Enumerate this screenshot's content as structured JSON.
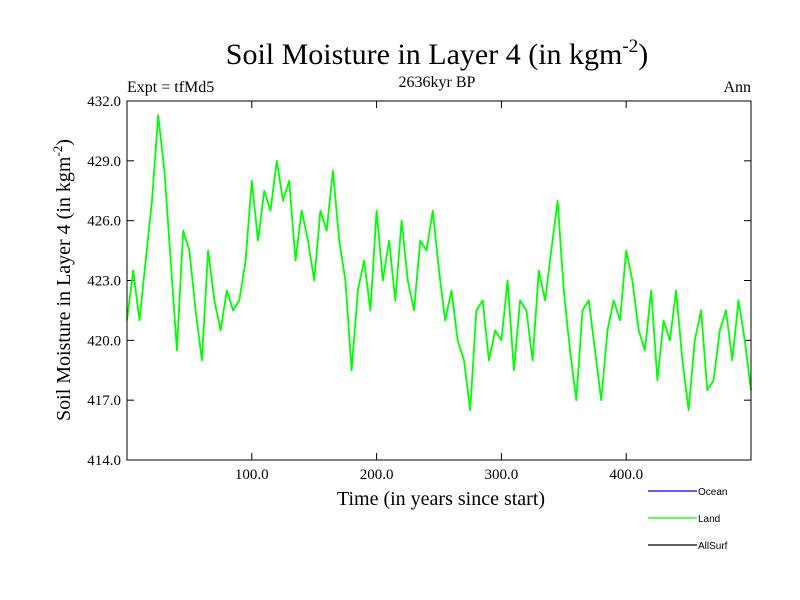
{
  "chart_data": {
    "type": "line",
    "title_main": "Soil Moisture in Layer 4 (in kgm",
    "title_sup": "-2",
    "title_close": ")",
    "subtitle_left": "Expt = tfMd5",
    "subtitle_center": "2636kyr BP",
    "subtitle_right": "Ann",
    "xlabel": "Time (in years since start)",
    "ylabel_main": "Soil Moisture in Layer 4 (in kgm",
    "ylabel_sup": "-2",
    "ylabel_close": ")",
    "xlim": [
      0,
      500
    ],
    "ylim": [
      414.0,
      432.0
    ],
    "x_ticks": [
      100,
      200,
      300,
      400
    ],
    "x_tick_labels": [
      "100.0",
      "200.0",
      "300.0",
      "400.0"
    ],
    "y_ticks": [
      414,
      417,
      420,
      423,
      426,
      429,
      432
    ],
    "y_tick_labels": [
      "414.0",
      "417.0",
      "420.0",
      "423.0",
      "426.0",
      "429.0",
      "432.0"
    ],
    "series": [
      {
        "name": "Ocean",
        "color": "#0000ff",
        "x": [],
        "values": []
      },
      {
        "name": "Land",
        "color": "#00ff00",
        "x": [
          0,
          5,
          10,
          15,
          20,
          25,
          30,
          35,
          40,
          45,
          50,
          55,
          60,
          65,
          70,
          75,
          80,
          85,
          90,
          95,
          100,
          105,
          110,
          115,
          120,
          125,
          130,
          135,
          140,
          145,
          150,
          155,
          160,
          165,
          170,
          175,
          180,
          185,
          190,
          195,
          200,
          205,
          210,
          215,
          220,
          225,
          230,
          235,
          240,
          245,
          250,
          255,
          260,
          265,
          270,
          275,
          280,
          285,
          290,
          295,
          300,
          305,
          310,
          315,
          320,
          325,
          330,
          335,
          340,
          345,
          350,
          355,
          360,
          365,
          370,
          375,
          380,
          385,
          390,
          395,
          400,
          405,
          410,
          415,
          420,
          425,
          430,
          435,
          440,
          445,
          450,
          455,
          460,
          465,
          470,
          475,
          480,
          485,
          490,
          495,
          500
        ],
        "values": [
          421.0,
          423.5,
          421.0,
          424.0,
          427.0,
          431.3,
          428.5,
          424.0,
          419.5,
          425.5,
          424.5,
          421.5,
          419.0,
          424.5,
          422.0,
          420.5,
          422.5,
          421.5,
          422.0,
          424.0,
          428.0,
          425.0,
          427.5,
          426.5,
          429.0,
          427.0,
          428.0,
          424.0,
          426.5,
          425.0,
          423.0,
          426.5,
          425.5,
          428.5,
          425.0,
          423.0,
          418.5,
          422.5,
          424.0,
          421.5,
          426.5,
          423.0,
          425.0,
          422.0,
          426.0,
          423.0,
          421.5,
          425.0,
          424.5,
          426.5,
          423.5,
          421.0,
          422.5,
          420.0,
          419.0,
          416.5,
          421.5,
          422.0,
          419.0,
          420.5,
          420.0,
          423.0,
          418.5,
          422.0,
          421.5,
          419.0,
          423.5,
          422.0,
          424.5,
          427.0,
          422.5,
          419.5,
          417.0,
          421.5,
          422.0,
          419.5,
          417.0,
          420.5,
          422.0,
          421.0,
          424.5,
          423.0,
          420.5,
          419.5,
          422.5,
          418.0,
          421.0,
          420.0,
          422.5,
          419.0,
          416.5,
          420.0,
          421.5,
          417.5,
          418.0,
          420.5,
          421.5,
          419.0,
          422.0,
          420.0,
          417.5
        ]
      },
      {
        "name": "AllSurf",
        "color": "#000000",
        "x": [],
        "values": []
      }
    ]
  }
}
